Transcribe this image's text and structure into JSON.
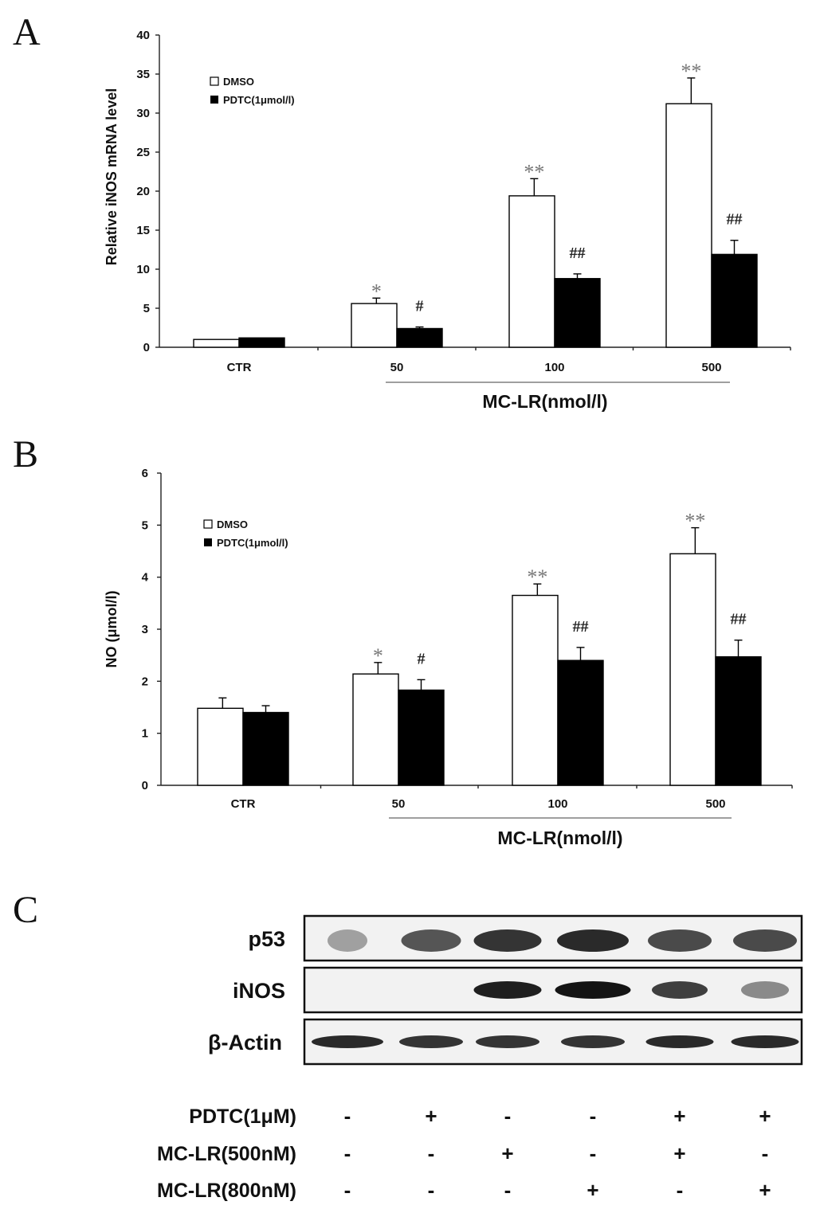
{
  "panels": {
    "a": "A",
    "b": "B",
    "c": "C"
  },
  "chart_data": [
    {
      "type": "bar",
      "panel": "A",
      "ylabel": "Relative iNOS mRNA level",
      "xgroup_label": "MC-LR(nmol/l)",
      "categories": [
        "CTR",
        "50",
        "100",
        "500"
      ],
      "ylim": [
        0,
        40
      ],
      "yticks": [
        0,
        5,
        10,
        15,
        20,
        25,
        30,
        35,
        40
      ],
      "legend_position": "top-left",
      "series": [
        {
          "name": "DMSO",
          "color": "#ffffff",
          "values": [
            1.0,
            5.6,
            19.4,
            31.2
          ],
          "errors": [
            0.0,
            0.7,
            2.2,
            3.3
          ]
        },
        {
          "name": "PDTC(1μmol/l)",
          "color": "#000000",
          "values": [
            1.2,
            2.4,
            8.8,
            11.9
          ],
          "errors": [
            0.0,
            0.2,
            0.6,
            1.8
          ]
        }
      ],
      "annotations": [
        [
          "*",
          "#"
        ],
        [
          "**",
          "##"
        ],
        [
          "**",
          "##"
        ]
      ]
    },
    {
      "type": "bar",
      "panel": "B",
      "ylabel": "NO (μmol/l)",
      "xgroup_label": "MC-LR(nmol/l)",
      "categories": [
        "CTR",
        "50",
        "100",
        "500"
      ],
      "ylim": [
        0,
        6
      ],
      "yticks": [
        0,
        1,
        2,
        3,
        4,
        5,
        6
      ],
      "legend_position": "top-left",
      "series": [
        {
          "name": "DMSO",
          "color": "#ffffff",
          "values": [
            1.48,
            2.14,
            3.65,
            4.45
          ],
          "errors": [
            0.2,
            0.22,
            0.22,
            0.5
          ]
        },
        {
          "name": "PDTC(1μmol/l)",
          "color": "#000000",
          "values": [
            1.4,
            1.83,
            2.4,
            2.47
          ],
          "errors": [
            0.13,
            0.2,
            0.25,
            0.32
          ]
        }
      ],
      "annotations": [
        [
          "*",
          "#"
        ],
        [
          "**",
          "##"
        ],
        [
          "**",
          "##"
        ]
      ]
    }
  ],
  "blot": {
    "rows": [
      {
        "label": "p53",
        "intensity": [
          0.35,
          0.7,
          0.85,
          0.9,
          0.75,
          0.75
        ],
        "width": [
          0.5,
          0.75,
          0.85,
          0.9,
          0.8,
          0.8
        ]
      },
      {
        "label": "iNOS",
        "intensity": [
          0.0,
          0.0,
          0.95,
          1.0,
          0.8,
          0.45
        ],
        "width": [
          0.0,
          0.0,
          0.85,
          0.95,
          0.7,
          0.6
        ]
      },
      {
        "label": "β-Actin",
        "intensity": [
          0.9,
          0.85,
          0.85,
          0.85,
          0.9,
          0.9
        ],
        "width": [
          0.9,
          0.8,
          0.8,
          0.8,
          0.85,
          0.85
        ]
      }
    ],
    "conditions": [
      {
        "label": "PDTC(1μM)",
        "signs": [
          "-",
          "+",
          "-",
          "-",
          "+",
          "+"
        ]
      },
      {
        "label": "MC-LR(500nM)",
        "signs": [
          "-",
          "-",
          "+",
          "-",
          "+",
          "-"
        ]
      },
      {
        "label": "MC-LR(800nM)",
        "signs": [
          "-",
          "-",
          "-",
          "+",
          "-",
          "+"
        ]
      }
    ]
  }
}
